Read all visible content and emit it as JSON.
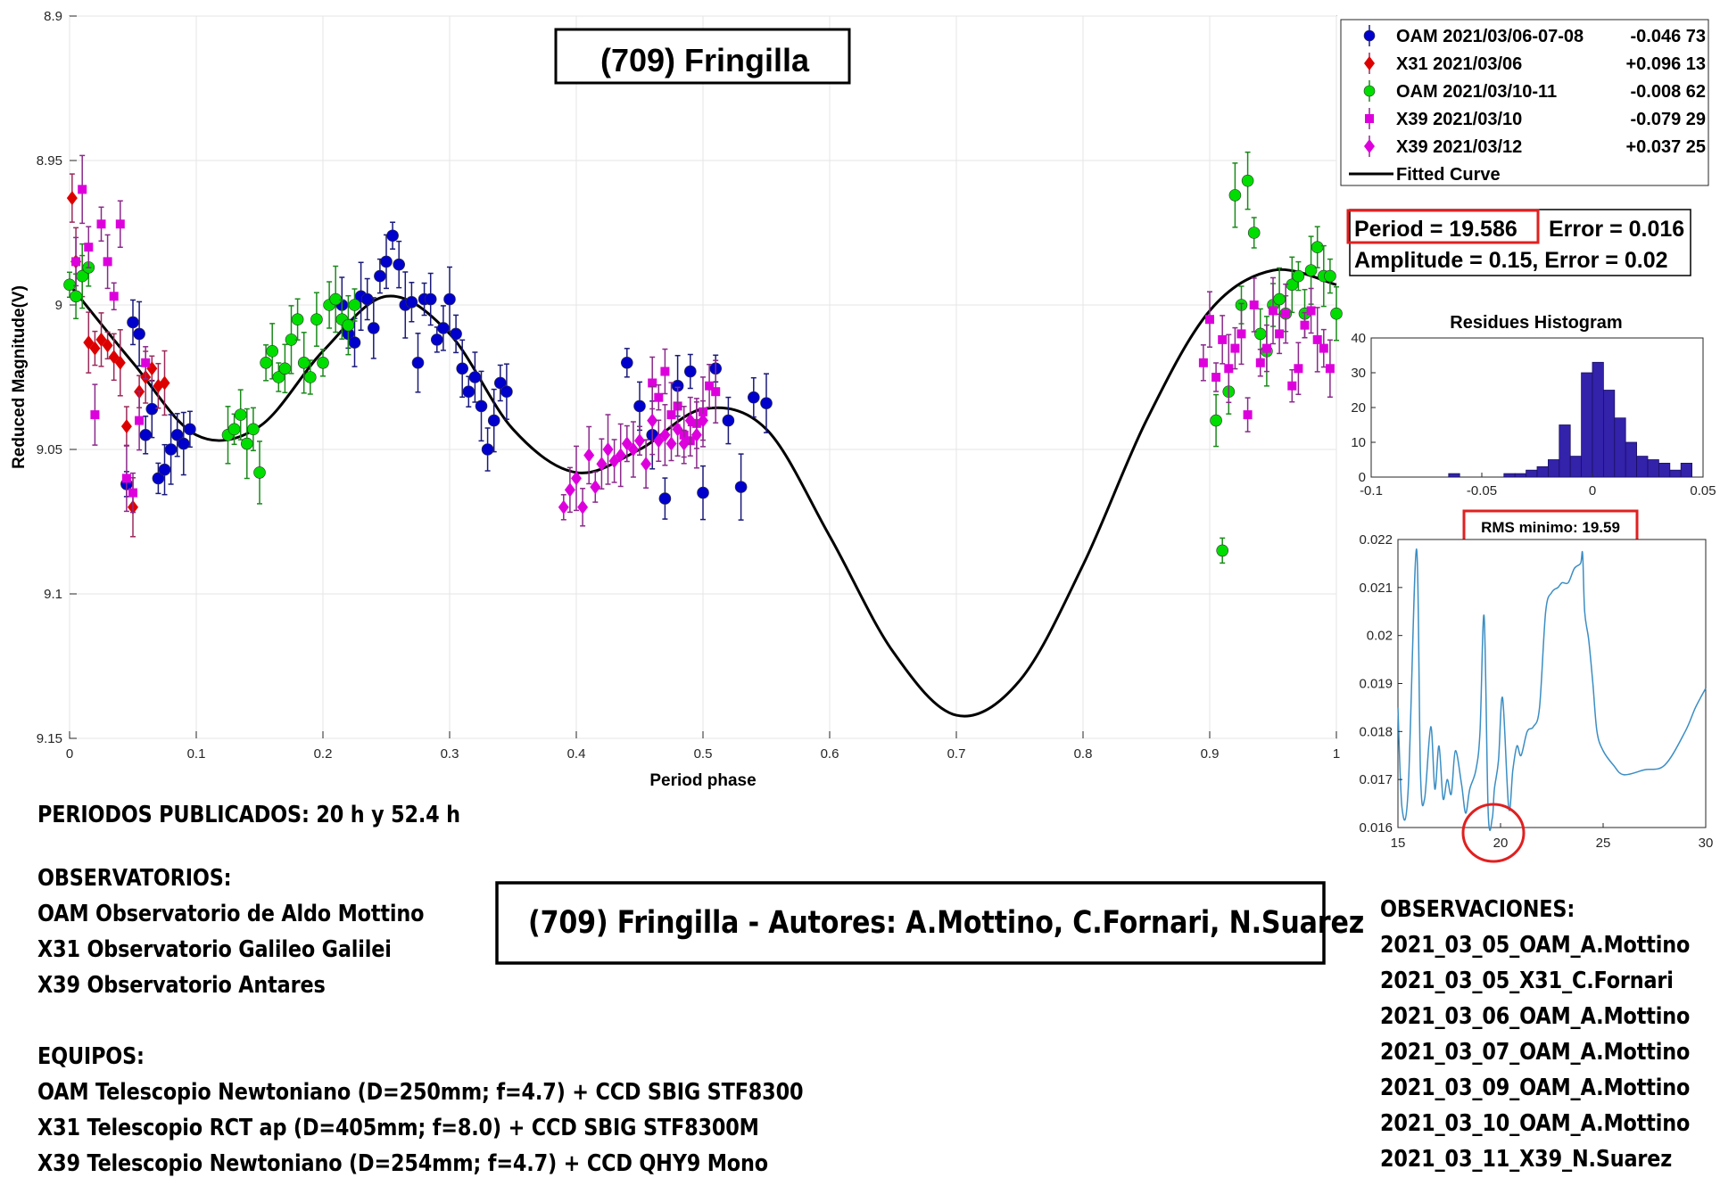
{
  "chart_data": [
    {
      "type": "scatter",
      "title": "(709) Fringilla",
      "xlabel": "Period phase",
      "ylabel": "Reduced Magnitude(V)",
      "xlim": [
        0,
        1
      ],
      "ylim": [
        8.9,
        9.15
      ],
      "y_reversed": true,
      "xticks": [
        "0",
        "0.1",
        "0.2",
        "0.3",
        "0.4",
        "0.5",
        "0.6",
        "0.7",
        "0.8",
        "0.9",
        "1"
      ],
      "yticks": [
        "8.9",
        "8.95",
        "9",
        "9.05",
        "9.1",
        "9.15"
      ],
      "grid": true,
      "legend_position": "outside-top-right",
      "series": [
        {
          "name": "OAM 2021/03/06-07-08",
          "offset": "-0.046 73",
          "color": "#0000cc",
          "marker": "circle",
          "x": [
            0.045,
            0.05,
            0.055,
            0.06,
            0.065,
            0.07,
            0.075,
            0.08,
            0.085,
            0.09,
            0.095,
            0.215,
            0.22,
            0.225,
            0.23,
            0.235,
            0.24,
            0.245,
            0.25,
            0.255,
            0.26,
            0.265,
            0.27,
            0.275,
            0.28,
            0.285,
            0.29,
            0.295,
            0.3,
            0.305,
            0.31,
            0.315,
            0.32,
            0.325,
            0.33,
            0.335,
            0.34,
            0.345,
            0.44,
            0.45,
            0.46,
            0.47,
            0.48,
            0.49,
            0.5,
            0.51,
            0.52,
            0.53,
            0.54,
            0.55
          ],
          "y": [
            9.062,
            9.006,
            9.01,
            9.045,
            9.036,
            9.06,
            9.057,
            9.05,
            9.045,
            9.048,
            9.043,
            9.0,
            9.01,
            9.013,
            8.997,
            8.998,
            9.008,
            8.99,
            8.985,
            8.976,
            8.986,
            9.0,
            8.999,
            9.02,
            8.998,
            8.998,
            9.012,
            9.008,
            8.998,
            9.01,
            9.022,
            9.03,
            9.025,
            9.035,
            9.05,
            9.04,
            9.027,
            9.03,
            9.02,
            9.035,
            9.045,
            9.067,
            9.028,
            9.023,
            9.065,
            9.022,
            9.04,
            9.063,
            9.032,
            9.034
          ]
        },
        {
          "name": "X31 2021/03/06",
          "offset": "+0.096 13",
          "color": "#dd0000",
          "marker": "diamond",
          "x": [
            0.002,
            0.005,
            0.01,
            0.015,
            0.02,
            0.025,
            0.03,
            0.035,
            0.04,
            0.045,
            0.05,
            0.055,
            0.06,
            0.065,
            0.07,
            0.075
          ],
          "y": [
            8.963,
            8.985,
            8.99,
            9.013,
            9.015,
            9.012,
            9.014,
            9.018,
            9.02,
            9.042,
            9.07,
            9.03,
            9.025,
            9.022,
            9.028,
            9.027
          ]
        },
        {
          "name": "OAM 2021/03/10-11",
          "offset": "-0.008 62",
          "color": "#00dd00",
          "marker": "circle",
          "x": [
            0.0,
            0.005,
            0.01,
            0.015,
            0.125,
            0.13,
            0.135,
            0.14,
            0.145,
            0.15,
            0.155,
            0.16,
            0.165,
            0.17,
            0.175,
            0.18,
            0.185,
            0.19,
            0.195,
            0.2,
            0.205,
            0.21,
            0.215,
            0.22,
            0.225,
            0.905,
            0.91,
            0.915,
            0.92,
            0.925,
            0.93,
            0.935,
            0.94,
            0.945,
            0.95,
            0.955,
            0.96,
            0.965,
            0.97,
            0.975,
            0.98,
            0.985,
            0.99,
            0.995,
            1.0
          ],
          "y": [
            8.993,
            8.997,
            8.99,
            8.987,
            9.045,
            9.043,
            9.038,
            9.048,
            9.043,
            9.058,
            9.02,
            9.016,
            9.025,
            9.022,
            9.012,
            9.005,
            9.02,
            9.025,
            9.005,
            9.02,
            9.0,
            8.998,
            9.005,
            9.007,
            9.0,
            9.04,
            9.085,
            9.03,
            8.962,
            9.0,
            8.957,
            8.975,
            9.01,
            9.016,
            9.0,
            8.998,
            9.003,
            8.993,
            8.99,
            9.003,
            8.988,
            8.98,
            8.99,
            8.99,
            9.003
          ]
        },
        {
          "name": "X39 2021/03/10",
          "offset": "-0.079 29",
          "color": "#dd00dd",
          "marker": "square",
          "x": [
            0.005,
            0.01,
            0.015,
            0.02,
            0.025,
            0.03,
            0.035,
            0.04,
            0.045,
            0.05,
            0.055,
            0.06,
            0.46,
            0.465,
            0.47,
            0.475,
            0.48,
            0.485,
            0.49,
            0.495,
            0.5,
            0.505,
            0.51,
            0.895,
            0.9,
            0.905,
            0.91,
            0.915,
            0.92,
            0.925,
            0.93,
            0.935,
            0.94,
            0.945,
            0.95,
            0.955,
            0.96,
            0.965,
            0.97,
            0.975,
            0.98,
            0.985,
            0.99,
            0.995
          ],
          "y": [
            8.985,
            8.96,
            8.98,
            9.038,
            8.972,
            8.985,
            8.997,
            8.972,
            9.06,
            9.065,
            9.04,
            9.02,
            9.027,
            9.032,
            9.023,
            9.038,
            9.035,
            9.045,
            9.047,
            9.041,
            9.037,
            9.028,
            9.03,
            9.02,
            9.005,
            9.025,
            9.012,
            9.022,
            9.015,
            9.01,
            9.038,
            9.0,
            9.02,
            9.015,
            9.002,
            9.01,
            9.003,
            9.028,
            9.022,
            9.007,
            9.002,
            9.012,
            9.015,
            9.022
          ]
        },
        {
          "name": "X39 2021/03/12",
          "offset": "+0.037 25",
          "color": "#dd00dd",
          "marker": "diamond",
          "x": [
            0.39,
            0.395,
            0.4,
            0.405,
            0.41,
            0.415,
            0.42,
            0.425,
            0.43,
            0.435,
            0.44,
            0.445,
            0.45,
            0.455,
            0.46,
            0.465,
            0.47,
            0.475,
            0.48,
            0.485,
            0.49,
            0.495,
            0.5
          ],
          "y": [
            9.07,
            9.064,
            9.06,
            9.07,
            9.052,
            9.063,
            9.055,
            9.05,
            9.054,
            9.052,
            9.048,
            9.05,
            9.047,
            9.055,
            9.04,
            9.047,
            9.045,
            9.048,
            9.043,
            9.048,
            9.04,
            9.045,
            9.04
          ]
        },
        {
          "name": "Fitted Curve",
          "color": "#000000",
          "type": "line",
          "x": [
            0,
            0.05,
            0.1,
            0.15,
            0.2,
            0.25,
            0.3,
            0.35,
            0.4,
            0.45,
            0.5,
            0.55,
            0.6,
            0.65,
            0.7,
            0.75,
            0.8,
            0.85,
            0.9,
            0.95,
            1.0
          ],
          "y": [
            8.993,
            9.02,
            9.045,
            9.042,
            9.016,
            8.997,
            9.01,
            9.043,
            9.058,
            9.05,
            9.036,
            9.043,
            9.08,
            9.12,
            9.142,
            9.13,
            9.09,
            9.04,
            9.002,
            8.988,
            8.993
          ]
        }
      ]
    },
    {
      "type": "bar",
      "title": "Residues Histogram",
      "xlim": [
        -0.1,
        0.05
      ],
      "ylim": [
        0,
        40
      ],
      "xticks": [
        "-0.1",
        "-0.05",
        "0",
        "0.05"
      ],
      "yticks": [
        "0",
        "10",
        "20",
        "30",
        "40"
      ],
      "color": "#3322aa",
      "bin_centers": [
        -0.0625,
        -0.0375,
        -0.0325,
        -0.0275,
        -0.0225,
        -0.0175,
        -0.0125,
        -0.0075,
        -0.0025,
        0.0025,
        0.0075,
        0.0125,
        0.0175,
        0.0225,
        0.0275,
        0.0325,
        0.0375,
        0.0425
      ],
      "values": [
        1,
        1,
        1,
        2,
        3,
        5,
        15,
        6,
        30,
        33,
        25,
        17,
        10,
        6,
        5,
        4,
        2,
        4
      ]
    },
    {
      "type": "line",
      "title": "RMS minimo: 19.59",
      "xlim": [
        15,
        30
      ],
      "ylim": [
        0.016,
        0.022
      ],
      "xticks": [
        "15",
        "20",
        "25",
        "30"
      ],
      "yticks": [
        "0.016",
        "0.017",
        "0.018",
        "0.019",
        "0.02",
        "0.021",
        "0.022"
      ],
      "color": "#3b8ec4",
      "minimum_marker": 19.59,
      "x": [
        15,
        15.2,
        15.5,
        15.9,
        16.1,
        16.3,
        16.6,
        16.8,
        17.0,
        17.2,
        17.4,
        17.6,
        17.8,
        18.1,
        18.3,
        18.5,
        18.8,
        19.0,
        19.2,
        19.4,
        19.6,
        19.7,
        19.9,
        20.1,
        20.4,
        20.6,
        20.8,
        21.0,
        21.3,
        21.6,
        21.9,
        22.2,
        22.5,
        22.8,
        23.0,
        23.3,
        23.6,
        23.9,
        24.0,
        24.1,
        24.3,
        24.5,
        24.7,
        25.0,
        25.5,
        26.0,
        27.0,
        28.0,
        29.0,
        29.5,
        30.0
      ],
      "y": [
        0.0185,
        0.0164,
        0.0168,
        0.0218,
        0.0171,
        0.0166,
        0.0181,
        0.0168,
        0.0177,
        0.0166,
        0.017,
        0.0167,
        0.0176,
        0.0169,
        0.0163,
        0.0168,
        0.0172,
        0.018,
        0.0204,
        0.0163,
        0.0162,
        0.0168,
        0.0174,
        0.0187,
        0.0164,
        0.0172,
        0.0177,
        0.0175,
        0.018,
        0.0181,
        0.0185,
        0.0205,
        0.0209,
        0.021,
        0.0211,
        0.0211,
        0.0214,
        0.0215,
        0.0217,
        0.0205,
        0.0199,
        0.019,
        0.018,
        0.0176,
        0.0173,
        0.0171,
        0.0172,
        0.0173,
        0.018,
        0.0185,
        0.0189
      ]
    }
  ],
  "title_box": "(709) Fringilla",
  "period_value": "Period =  19.586",
  "period_error": "Error = 0.016",
  "amplitude_line": "Amplitude = 0.15, Error = 0.02",
  "rms_label": "RMS minimo: 19.59",
  "legend": [
    {
      "name": "OAM 2021/03/06-07-08",
      "offset": "-0.046 73"
    },
    {
      "name": "X31 2021/03/06",
      "offset": "+0.096 13"
    },
    {
      "name": "OAM 2021/03/10-11",
      "offset": "-0.008 62"
    },
    {
      "name": "X39 2021/03/10",
      "offset": "-0.079 29"
    },
    {
      "name": "X39 2021/03/12",
      "offset": "+0.037 25"
    },
    {
      "name": "Fitted Curve",
      "offset": ""
    }
  ],
  "info": {
    "periodos": "PERIODOS PUBLICADOS: 20 h y 52.4 h",
    "observatorios_title": "OBSERVATORIOS:",
    "observatorios": [
      "OAM Observatorio de Aldo Mottino",
      "X31 Observatorio Galileo Galilei",
      "X39 Observatorio Antares"
    ],
    "equipos_title": "EQUIPOS:",
    "equipos": [
      "OAM Telescopio Newtoniano (D=250mm; f=4.7) + CCD SBIG STF8300",
      "X31 Telescopio RCT ap (D=405mm; f=8.0) + CCD SBIG STF8300M",
      "X39 Telescopio Newtoniano (D=254mm; f=4.7) + CCD QHY9 Mono"
    ],
    "autores": "(709) Fringilla  - Autores: A.Mottino, C.Fornari, N.Suarez",
    "observaciones_title": "OBSERVACIONES:",
    "observaciones": [
      "2021_03_05_OAM_A.Mottino",
      "2021_03_05_X31_C.Fornari",
      "2021_03_06_OAM_A.Mottino",
      "2021_03_07_OAM_A.Mottino",
      "2021_03_09_OAM_A.Mottino",
      "2021_03_10_OAM_A.Mottino",
      "2021_03_11_X39_N.Suarez"
    ]
  }
}
